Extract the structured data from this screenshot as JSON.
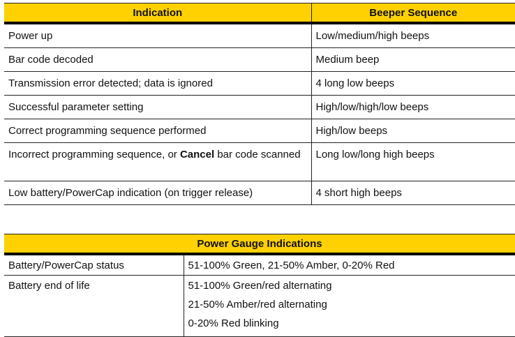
{
  "beeper_table": {
    "headers": [
      "Indication",
      "Beeper Sequence"
    ],
    "rows": [
      {
        "indication": "Power up",
        "sequence": "Low/medium/high beeps"
      },
      {
        "indication": "Bar code decoded",
        "sequence": "Medium beep"
      },
      {
        "indication": "Transmission error detected; data is ignored",
        "sequence": "4 long low beeps"
      },
      {
        "indication": "Successful parameter setting",
        "sequence": "High/low/high/low beeps"
      },
      {
        "indication": "Correct programming sequence performed",
        "sequence": "High/low beeps"
      },
      {
        "indication_pre": "Incorrect programming sequence, or ",
        "indication_bold": "Cancel",
        "indication_post": " bar code scanned",
        "sequence": "Long low/long high beeps"
      },
      {
        "indication": "Low battery/PowerCap indication (on trigger release)",
        "sequence": "4 short high beeps"
      }
    ]
  },
  "power_table": {
    "header": "Power Gauge Indications",
    "rows": [
      {
        "label": "Battery/PowerCap status",
        "values": [
          "51-100% Green, 21-50% Amber, 0-20% Red"
        ]
      },
      {
        "label": "Battery end of life",
        "values": [
          "51-100% Green/red alternating",
          "21-50% Amber/red alternating",
          "0-20% Red blinking"
        ]
      }
    ]
  },
  "colors": {
    "header_bg": "#FFD100"
  }
}
